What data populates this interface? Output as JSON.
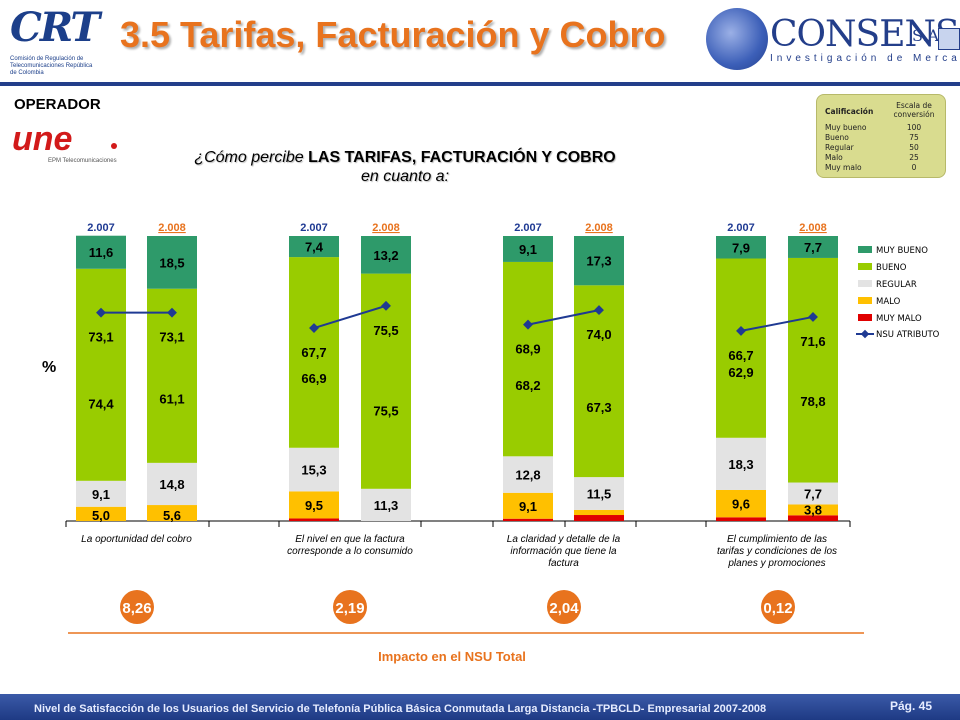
{
  "header": {
    "crt_logo_text": "CRT",
    "crt_tagline": "Comisión de Regulación de Telecomunicaciones República de Colombia",
    "title": "3.5 Tarifas, Facturación y Cobro",
    "consenso_name": "CONSENSO",
    "consenso_sa": "S.A.",
    "consenso_sub": "Investigación de Mercados"
  },
  "operator": {
    "label": "OPERADOR",
    "logo_text": "une",
    "logo_sub": "EPM Telecomunicaciones"
  },
  "question": {
    "prefix": "¿Cómo percibe ",
    "bold": "LAS TARIFAS, FACTURACIÓN Y COBRO",
    "line2": "en cuanto a:"
  },
  "scale_box": {
    "header_left": "Calificación",
    "header_right": "Escala de conversión",
    "rows": [
      {
        "label": "Muy bueno",
        "value": "100"
      },
      {
        "label": "Bueno",
        "value": "75"
      },
      {
        "label": "Regular",
        "value": "50"
      },
      {
        "label": "Malo",
        "value": "25"
      },
      {
        "label": "Muy malo",
        "value": "0"
      }
    ]
  },
  "chart_data": {
    "type": "bar",
    "stacked": true,
    "ylabel": "%",
    "ylim": [
      0,
      100
    ],
    "grid": false,
    "legend_position": "right",
    "series_names": [
      "MUY BUENO",
      "BUENO",
      "REGULAR",
      "MALO",
      "MUY MALO"
    ],
    "line_series_name": "NSU ATRIBUTO",
    "colors": {
      "MUY BUENO": "#2e9a6a",
      "BUENO": "#99cc00",
      "REGULAR": "#e3e3e3",
      "MALO": "#ffc000",
      "MUY MALO": "#e00000",
      "NSU ATRIBUTO": "#1f3a93",
      "year_2008": "#e8731e"
    },
    "groups": [
      {
        "label": "La oportunidad del cobro",
        "impact": "8,26",
        "bars": [
          {
            "year": "2.007",
            "muy_bueno": 11.6,
            "bueno": 74.4,
            "regular": 9.1,
            "malo": 5.0,
            "muy_malo": 0.0,
            "labels": {
              "muy_bueno": "11,6",
              "bueno": "74,4",
              "regular": "9,1",
              "malo": "5,0"
            },
            "nsu": 73.1,
            "nsu_label": "73,1"
          },
          {
            "year": "2.008",
            "muy_bueno": 18.5,
            "bueno": 61.1,
            "regular": 14.8,
            "malo": 5.6,
            "muy_malo": 0.0,
            "labels": {
              "muy_bueno": "18,5",
              "bueno": "61,1",
              "regular": "14,8",
              "malo": "5,6"
            },
            "nsu": 73.1,
            "nsu_label": "73,1"
          }
        ]
      },
      {
        "label": "El nivel en que la factura corresponde a lo consumido",
        "impact": "2,19",
        "bars": [
          {
            "year": "2.007",
            "muy_bueno": 7.4,
            "bueno": 66.9,
            "regular": 15.3,
            "malo": 9.5,
            "muy_malo": 0.9,
            "labels": {
              "muy_bueno": "7,4",
              "bueno": "66,9",
              "regular": "15,3",
              "malo": "9,5"
            },
            "nsu": 67.7,
            "nsu_label": "67,7"
          },
          {
            "year": "2.008",
            "muy_bueno": 13.2,
            "bueno": 75.5,
            "regular": 11.3,
            "malo": 0.0,
            "muy_malo": 0.0,
            "labels": {
              "muy_bueno": "13,2",
              "bueno": "75,5",
              "regular": "11,3"
            },
            "nsu": 75.5,
            "nsu_label": "75,5"
          }
        ]
      },
      {
        "label": "La claridad y detalle de la información que tiene la factura",
        "impact": "2,04",
        "bars": [
          {
            "year": "2.007",
            "muy_bueno": 9.1,
            "bueno": 68.2,
            "regular": 12.8,
            "malo": 9.1,
            "muy_malo": 0.8,
            "labels": {
              "muy_bueno": "9,1",
              "bueno": "68,2",
              "regular": "12,8",
              "malo": "9,1"
            },
            "nsu": 68.9,
            "nsu_label": "68,9"
          },
          {
            "year": "2.008",
            "muy_bueno": 17.3,
            "bueno": 67.3,
            "regular": 11.5,
            "malo": 1.8,
            "muy_malo": 2.1,
            "labels": {
              "muy_bueno": "17,3",
              "bueno": "67,3",
              "regular": "11,5"
            },
            "nsu": 74.0,
            "nsu_label": "74,0"
          }
        ]
      },
      {
        "label": "El cumplimiento de las tarifas y condiciones de los planes y promociones",
        "impact": "0,12",
        "bars": [
          {
            "year": "2.007",
            "muy_bueno": 7.9,
            "bueno": 62.9,
            "regular": 18.3,
            "malo": 9.6,
            "muy_malo": 1.3,
            "labels": {
              "muy_bueno": "7,9",
              "bueno": "62,9",
              "regular": "18,3",
              "malo": "9,6"
            },
            "nsu": 66.7,
            "nsu_label": "66,7"
          },
          {
            "year": "2.008",
            "muy_bueno": 7.7,
            "bueno": 78.8,
            "regular": 7.7,
            "malo": 3.8,
            "muy_malo": 2.0,
            "labels": {
              "muy_bueno": "7,7",
              "bueno": "78,8",
              "regular": "7,7",
              "malo": "3,8"
            },
            "nsu": 71.6,
            "nsu_label": "71,6"
          }
        ]
      }
    ],
    "impact_caption": "Impacto en el NSU Total"
  },
  "footer": {
    "text": "Nivel de Satisfacción de los Usuarios del Servicio de Telefonía Pública Básica Conmutada Larga Distancia -TPBCLD- Empresarial 2007-2008",
    "page": "Pág. 45"
  }
}
